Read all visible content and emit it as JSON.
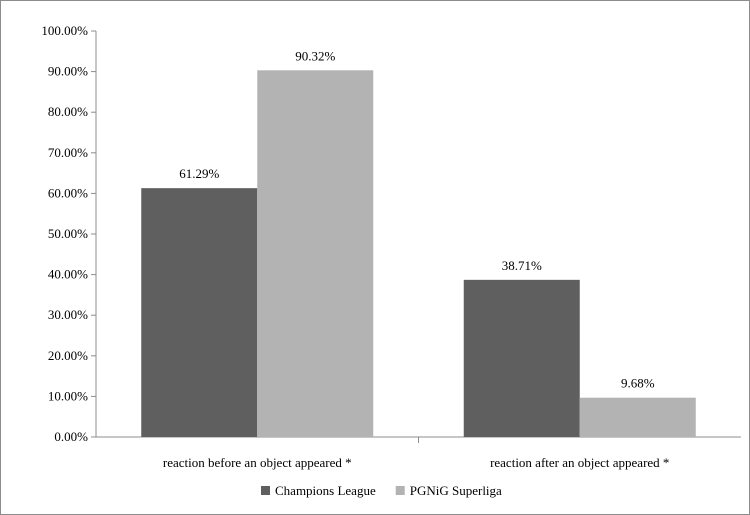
{
  "chart_data": {
    "type": "bar",
    "categories": [
      "reaction before an object appeared *",
      "reaction after an object appeared *"
    ],
    "series": [
      {
        "name": "Champions League",
        "values": [
          61.29,
          38.71
        ],
        "labels": [
          "61.29%",
          "38.71%"
        ],
        "color": "#5f5f5f"
      },
      {
        "name": "PGNiG Superliga",
        "values": [
          90.32,
          9.68
        ],
        "labels": [
          "90.32%",
          "9.68%"
        ],
        "color": "#b3b3b3"
      }
    ],
    "title": "",
    "xlabel": "",
    "ylabel": "",
    "ylim": [
      0,
      100
    ],
    "yticks": [
      0,
      10,
      20,
      30,
      40,
      50,
      60,
      70,
      80,
      90,
      100
    ],
    "ytick_labels": [
      "0.00%",
      "10.00%",
      "20.00%",
      "30.00%",
      "40.00%",
      "50.00%",
      "60.00%",
      "70.00%",
      "80.00%",
      "90.00%",
      "100.00%"
    ],
    "grid": false,
    "legend_position": "bottom"
  }
}
